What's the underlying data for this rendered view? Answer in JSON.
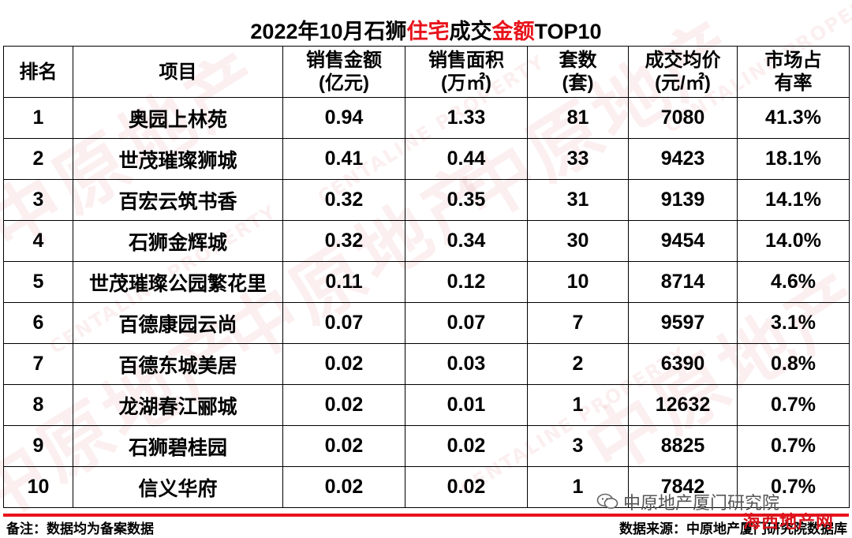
{
  "title": {
    "part1": "2022年10月石狮",
    "highlight1": "住宅",
    "part2": "成交",
    "highlight2": "金额",
    "part3": "TOP10"
  },
  "colors": {
    "accent": "#e8141c"
  },
  "table": {
    "headers": {
      "rank": "排名",
      "name": "项目",
      "amount_l1": "销售金额",
      "amount_l2": "(亿元)",
      "area_l1": "销售面积",
      "area_l2": "(万㎡)",
      "units_l1": "套数",
      "units_l2": "(套)",
      "price_l1": "成交均价",
      "price_l2": "(元/㎡)",
      "share_l1": "市场占",
      "share_l2": "有率"
    },
    "rows": [
      {
        "rank": "1",
        "name": "奥园上林苑",
        "amount": "0.94",
        "area": "1.33",
        "units": "81",
        "price": "7080",
        "share": "41.3%"
      },
      {
        "rank": "2",
        "name": "世茂璀璨狮城",
        "amount": "0.41",
        "area": "0.44",
        "units": "33",
        "price": "9423",
        "share": "18.1%"
      },
      {
        "rank": "3",
        "name": "百宏云筑书香",
        "amount": "0.32",
        "area": "0.35",
        "units": "31",
        "price": "9139",
        "share": "14.1%"
      },
      {
        "rank": "4",
        "name": "石狮金辉城",
        "amount": "0.32",
        "area": "0.34",
        "units": "30",
        "price": "9454",
        "share": "14.0%"
      },
      {
        "rank": "5",
        "name": "世茂璀璨公园繁花里",
        "amount": "0.11",
        "area": "0.12",
        "units": "10",
        "price": "8714",
        "share": "4.6%"
      },
      {
        "rank": "6",
        "name": "百德康园云尚",
        "amount": "0.07",
        "area": "0.07",
        "units": "7",
        "price": "9597",
        "share": "3.1%"
      },
      {
        "rank": "7",
        "name": "百德东城美居",
        "amount": "0.02",
        "area": "0.03",
        "units": "2",
        "price": "6390",
        "share": "0.8%"
      },
      {
        "rank": "8",
        "name": "龙湖春江郦城",
        "amount": "0.02",
        "area": "0.01",
        "units": "1",
        "price": "12632",
        "share": "0.7%"
      },
      {
        "rank": "9",
        "name": "石狮碧桂园",
        "amount": "0.02",
        "area": "0.02",
        "units": "3",
        "price": "8825",
        "share": "0.7%"
      },
      {
        "rank": "10",
        "name": "信义华府",
        "amount": "0.02",
        "area": "0.02",
        "units": "1",
        "price": "7842",
        "share": "0.7%"
      }
    ]
  },
  "footnote": "备注：数据均为备案数据",
  "source": "数据来源：中原地产厦门研究院数据库",
  "wechat_label": "中原地产厦门研究院",
  "stamp_text": "海西地产网"
}
